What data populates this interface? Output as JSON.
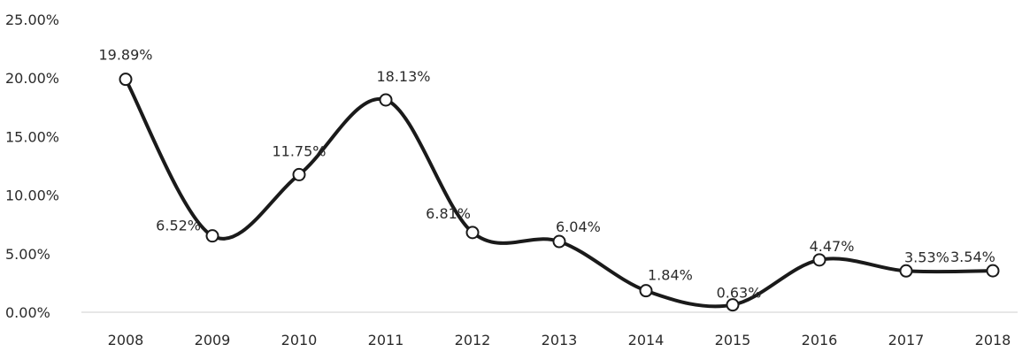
{
  "chart_data": {
    "type": "line",
    "x": [
      "2008",
      "2009",
      "2010",
      "2011",
      "2012",
      "2013",
      "2014",
      "2015",
      "2016",
      "2017",
      "2018"
    ],
    "series": [
      {
        "values": [
          19.89,
          6.52,
          11.75,
          18.13,
          6.81,
          6.04,
          1.84,
          0.63,
          4.47,
          3.53,
          3.54
        ],
        "labels": [
          "19.89%",
          "6.52%",
          "11.75%",
          "18.13%",
          "6.81%",
          "6.04%",
          "1.84%",
          "0.63%",
          "4.47%",
          "3.53%",
          "3.54%"
        ]
      }
    ],
    "yticks": [
      "25.00%",
      "20.00%",
      "15.00%",
      "10.00%",
      "5.00%",
      "0.00%"
    ],
    "ylim": [
      0,
      25
    ],
    "grid": false,
    "title": "",
    "xlabel": "",
    "ylabel": "",
    "colors": {
      "line": "#1a1a1a",
      "marker_fill": "#ffffff",
      "text": "#2b2b2b",
      "baseline": "#cfcfcf"
    }
  }
}
